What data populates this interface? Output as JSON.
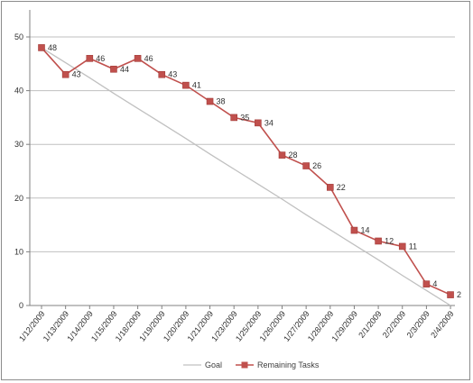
{
  "chart_data": {
    "type": "line",
    "title": "",
    "xlabel": "",
    "ylabel": "",
    "ylim": [
      0,
      50
    ],
    "yticks": [
      "0",
      "10",
      "20",
      "30",
      "40",
      "50"
    ],
    "grid": true,
    "legend_position": "bottom",
    "categories": [
      "1/12/2009",
      "1/13/2009",
      "1/14/2009",
      "1/15/2009",
      "1/18/2009",
      "1/19/2009",
      "1/20/2009",
      "1/21/2009",
      "1/23/2009",
      "1/25/2009",
      "1/26/2009",
      "1/27/2009",
      "1/28/2009",
      "1/29/2009",
      "2/1/2009",
      "2/2/2009",
      "2/3/2009",
      "2/4/2009"
    ],
    "series": [
      {
        "name": "Goal",
        "color": "#c0c0c0",
        "marker": "none",
        "values": [
          48,
          45.2,
          42.4,
          39.5,
          36.7,
          33.9,
          31.1,
          28.2,
          25.4,
          22.6,
          19.8,
          16.9,
          14.1,
          11.3,
          8.5,
          5.6,
          2.8,
          0
        ]
      },
      {
        "name": "Remaining Tasks",
        "color": "#c0504d",
        "marker": "square",
        "data_labels": true,
        "values": [
          48,
          43,
          46,
          44,
          46,
          43,
          41,
          38,
          35,
          34,
          28,
          26,
          22,
          14,
          12,
          11,
          4,
          2
        ]
      }
    ]
  }
}
